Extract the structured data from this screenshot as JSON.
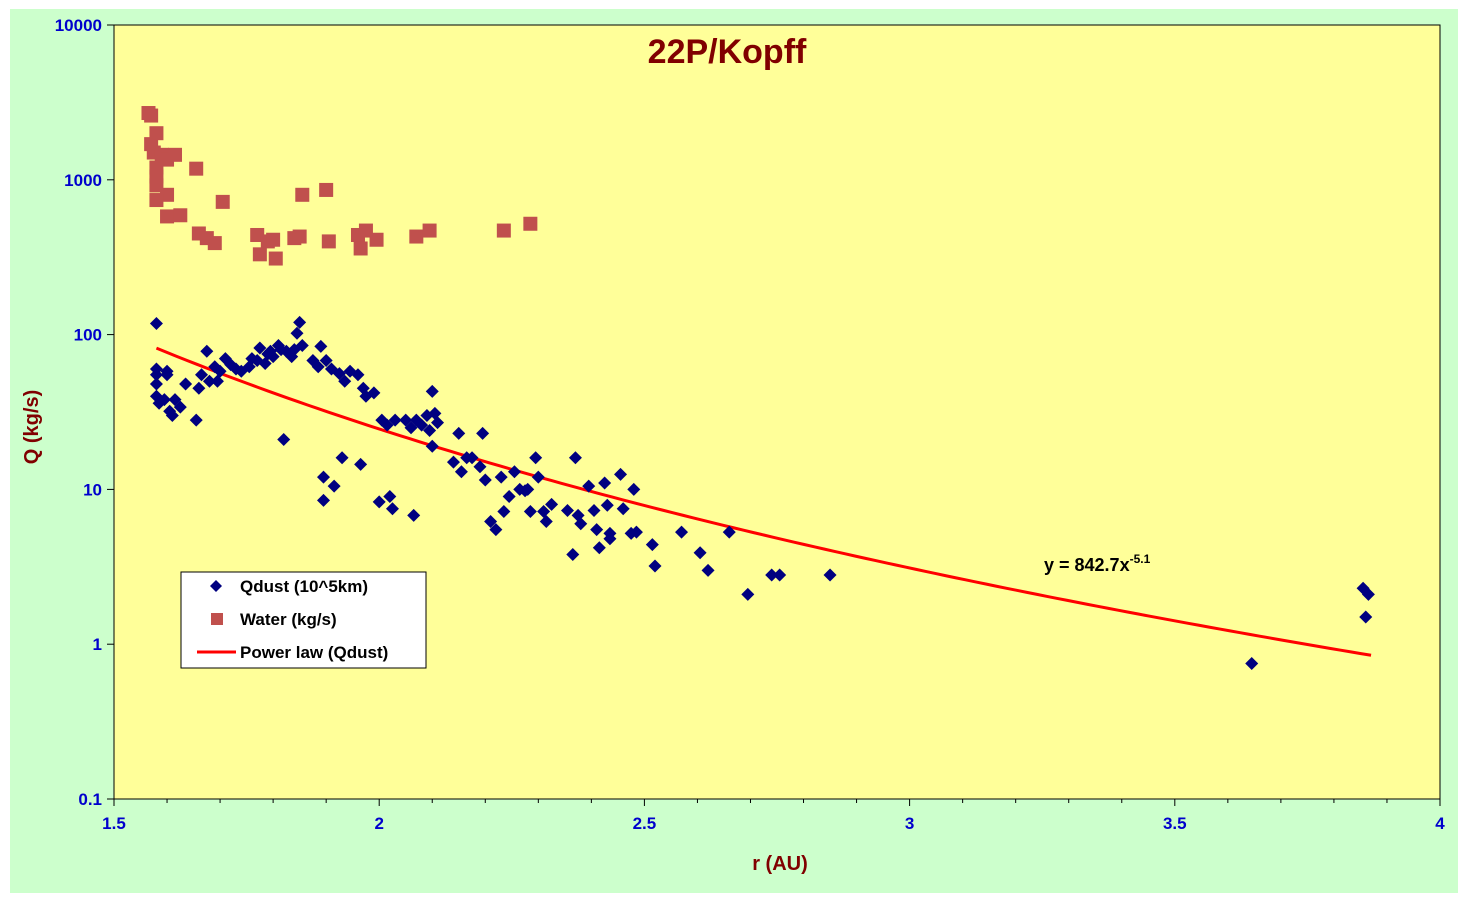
{
  "chart_data": {
    "type": "scatter",
    "title": "22P/Kopff",
    "xlabel": "r (AU)",
    "ylabel": "Q (kg/s)",
    "xlim": [
      1.5,
      4
    ],
    "ylim": [
      0.1,
      10000
    ],
    "yscale": "log",
    "x_ticks": [
      "1.5",
      "2",
      "2.5",
      "3",
      "3.5",
      "4"
    ],
    "y_ticks": [
      "0.1",
      "1",
      "10",
      "100",
      "1000",
      "10000"
    ],
    "grid": false,
    "legend_position": "bottom-left",
    "colors": {
      "page_background": "#ccffcc",
      "plot_background": "#ffff99",
      "qdust": "#000080",
      "water": "#c0504d",
      "power_law": "#ff0000",
      "title": "#800000",
      "tick_labels": "#0000cc"
    },
    "legend": {
      "qdust_label": "Qdust (10^5km)",
      "water_label": "Water (kg/s)",
      "powerlaw_label": "Power law (Qdust)"
    },
    "annotation": {
      "base": "y = 842.7x",
      "exponent": "-5.1"
    },
    "power_law": {
      "coefficient": 842.7,
      "exponent": -5.1,
      "x_range": [
        1.58,
        3.87
      ]
    },
    "series": [
      {
        "name": "Water (kg/s)",
        "marker": "square",
        "points": [
          [
            1.565,
            2700
          ],
          [
            1.57,
            2600
          ],
          [
            1.58,
            2000
          ],
          [
            1.57,
            1700
          ],
          [
            1.575,
            1500
          ],
          [
            1.59,
            1450
          ],
          [
            1.6,
            1350
          ],
          [
            1.615,
            1450
          ],
          [
            1.58,
            1200
          ],
          [
            1.58,
            1050
          ],
          [
            1.58,
            920
          ],
          [
            1.6,
            800
          ],
          [
            1.58,
            740
          ],
          [
            1.6,
            580
          ],
          [
            1.625,
            590
          ],
          [
            1.655,
            1180
          ],
          [
            1.66,
            450
          ],
          [
            1.675,
            420
          ],
          [
            1.69,
            390
          ],
          [
            1.705,
            720
          ],
          [
            1.77,
            440
          ],
          [
            1.775,
            330
          ],
          [
            1.79,
            400
          ],
          [
            1.8,
            410
          ],
          [
            1.805,
            310
          ],
          [
            1.84,
            420
          ],
          [
            1.85,
            430
          ],
          [
            1.855,
            800
          ],
          [
            1.9,
            860
          ],
          [
            1.905,
            400
          ],
          [
            1.96,
            440
          ],
          [
            1.965,
            360
          ],
          [
            1.975,
            470
          ],
          [
            1.995,
            410
          ],
          [
            2.07,
            430
          ],
          [
            2.095,
            470
          ],
          [
            2.235,
            470
          ],
          [
            2.285,
            520
          ]
        ]
      },
      {
        "name": "Qdust (10^5km)",
        "marker": "diamond",
        "points": [
          [
            1.58,
            118
          ],
          [
            1.58,
            60
          ],
          [
            1.58,
            55
          ],
          [
            1.58,
            48
          ],
          [
            1.58,
            40
          ],
          [
            1.585,
            36
          ],
          [
            1.595,
            38
          ],
          [
            1.6,
            55
          ],
          [
            1.6,
            58
          ],
          [
            1.605,
            32
          ],
          [
            1.61,
            30
          ],
          [
            1.615,
            38
          ],
          [
            1.625,
            34
          ],
          [
            1.635,
            48
          ],
          [
            1.655,
            28
          ],
          [
            1.66,
            45
          ],
          [
            1.665,
            55
          ],
          [
            1.675,
            78
          ],
          [
            1.68,
            50
          ],
          [
            1.69,
            62
          ],
          [
            1.695,
            50
          ],
          [
            1.7,
            58
          ],
          [
            1.71,
            70
          ],
          [
            1.72,
            64
          ],
          [
            1.73,
            60
          ],
          [
            1.74,
            58
          ],
          [
            1.755,
            62
          ],
          [
            1.76,
            70
          ],
          [
            1.77,
            68
          ],
          [
            1.775,
            82
          ],
          [
            1.785,
            65
          ],
          [
            1.79,
            75
          ],
          [
            1.795,
            78
          ],
          [
            1.8,
            72
          ],
          [
            1.81,
            85
          ],
          [
            1.815,
            80
          ],
          [
            1.82,
            21
          ],
          [
            1.825,
            78
          ],
          [
            1.835,
            72
          ],
          [
            1.84,
            80
          ],
          [
            1.845,
            102
          ],
          [
            1.85,
            120
          ],
          [
            1.855,
            85
          ],
          [
            1.875,
            68
          ],
          [
            1.885,
            62
          ],
          [
            1.89,
            84
          ],
          [
            1.895,
            12
          ],
          [
            1.895,
            8.5
          ],
          [
            1.9,
            68
          ],
          [
            1.91,
            60
          ],
          [
            1.915,
            10.5
          ],
          [
            1.925,
            56
          ],
          [
            1.93,
            16
          ],
          [
            1.935,
            50
          ],
          [
            1.945,
            58
          ],
          [
            1.96,
            55
          ],
          [
            1.965,
            14.5
          ],
          [
            1.97,
            45
          ],
          [
            1.975,
            40
          ],
          [
            1.99,
            42
          ],
          [
            2.0,
            8.3
          ],
          [
            2.005,
            28
          ],
          [
            2.015,
            26
          ],
          [
            2.02,
            9
          ],
          [
            2.025,
            7.5
          ],
          [
            2.03,
            28
          ],
          [
            2.05,
            28
          ],
          [
            2.06,
            25
          ],
          [
            2.065,
            6.8
          ],
          [
            2.07,
            28
          ],
          [
            2.08,
            26
          ],
          [
            2.09,
            30
          ],
          [
            2.095,
            24
          ],
          [
            2.1,
            43
          ],
          [
            2.1,
            19
          ],
          [
            2.105,
            31
          ],
          [
            2.11,
            27
          ],
          [
            2.14,
            15
          ],
          [
            2.15,
            23
          ],
          [
            2.155,
            13
          ],
          [
            2.165,
            16
          ],
          [
            2.175,
            16
          ],
          [
            2.19,
            14
          ],
          [
            2.195,
            23
          ],
          [
            2.2,
            11.5
          ],
          [
            2.21,
            6.2
          ],
          [
            2.22,
            5.5
          ],
          [
            2.23,
            12
          ],
          [
            2.235,
            7.2
          ],
          [
            2.245,
            9
          ],
          [
            2.255,
            13
          ],
          [
            2.265,
            10
          ],
          [
            2.275,
            9.8
          ],
          [
            2.28,
            10
          ],
          [
            2.285,
            7.2
          ],
          [
            2.295,
            16
          ],
          [
            2.3,
            12
          ],
          [
            2.31,
            7.2
          ],
          [
            2.315,
            6.2
          ],
          [
            2.325,
            8
          ],
          [
            2.355,
            7.3
          ],
          [
            2.365,
            3.8
          ],
          [
            2.37,
            16
          ],
          [
            2.375,
            6.8
          ],
          [
            2.38,
            6
          ],
          [
            2.395,
            10.5
          ],
          [
            2.405,
            7.3
          ],
          [
            2.41,
            5.5
          ],
          [
            2.415,
            4.2
          ],
          [
            2.425,
            11
          ],
          [
            2.43,
            7.9
          ],
          [
            2.435,
            5.2
          ],
          [
            2.435,
            4.8
          ],
          [
            2.455,
            12.5
          ],
          [
            2.46,
            7.5
          ],
          [
            2.475,
            5.2
          ],
          [
            2.48,
            10
          ],
          [
            2.485,
            5.3
          ],
          [
            2.515,
            4.4
          ],
          [
            2.52,
            3.2
          ],
          [
            2.57,
            5.3
          ],
          [
            2.605,
            3.9
          ],
          [
            2.62,
            3
          ],
          [
            2.66,
            5.3
          ],
          [
            2.695,
            2.1
          ],
          [
            2.74,
            2.8
          ],
          [
            2.755,
            2.8
          ],
          [
            2.85,
            2.8
          ],
          [
            3.645,
            0.75
          ],
          [
            3.855,
            2.3
          ],
          [
            3.86,
            1.5
          ],
          [
            3.865,
            2.1
          ]
        ]
      }
    ]
  }
}
